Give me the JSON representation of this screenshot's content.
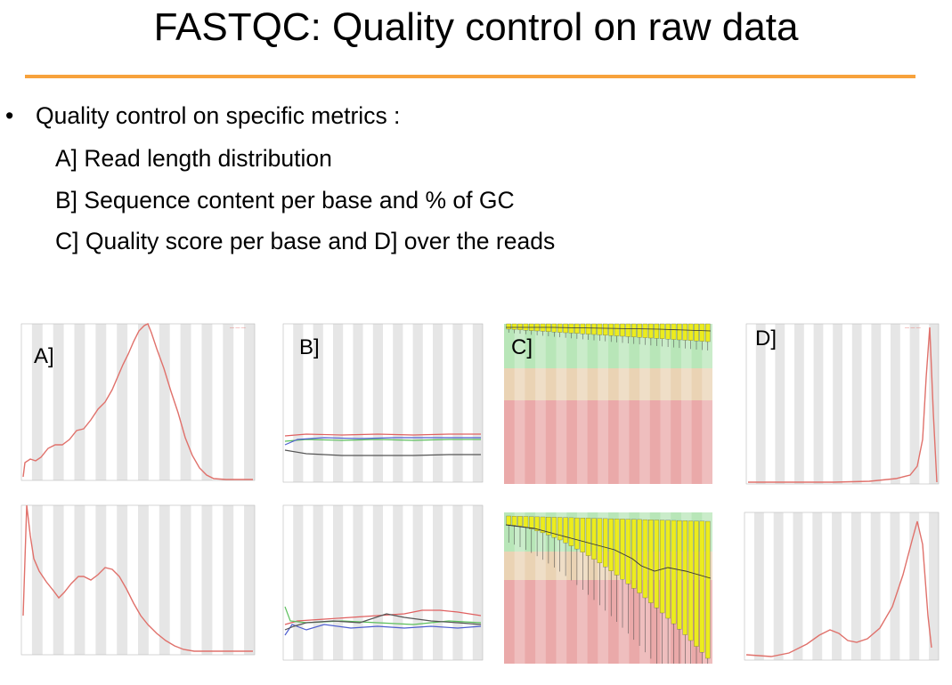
{
  "slide": {
    "title": "FASTQC: Quality control on raw data",
    "accent_color": "#f7a23c"
  },
  "bullets": {
    "main": "Quality control on specific metrics :",
    "items": [
      "A] Read length distribution",
      "B] Sequence content per base and % of GC",
      "C] Quality score per base and D] over the reads"
    ]
  },
  "figures": {
    "panel_labels": [
      "A]",
      "B]",
      "C]",
      "D]"
    ],
    "colors": {
      "band_light": "#ffffff",
      "band_dark": "#e6e6e6",
      "curve_red": "#e0716b",
      "q_green": "#b8e6b8",
      "q_orange": "#ead3b4",
      "q_red": "#eaa9a9",
      "box_yellow": "#ecec1e",
      "seq_red": "#e06060",
      "seq_green": "#5cbf5c",
      "seq_blue": "#4f5fcf",
      "seq_black": "#555555"
    }
  }
}
